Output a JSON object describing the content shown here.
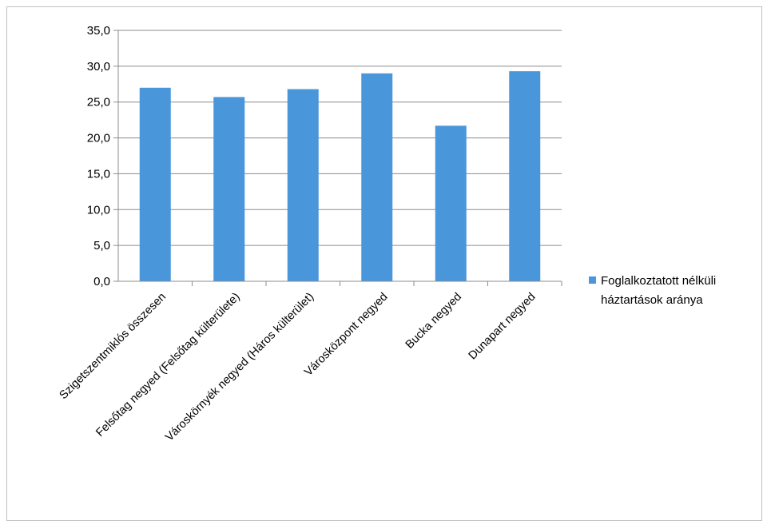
{
  "chart_data": {
    "type": "bar",
    "categories": [
      "Szigetszentmiklós összesen",
      "Felsőtag negyed (Felsőtag külterülete)",
      "Városkörnyék negyed (Háros külterület)",
      "Városközpont negyed",
      "Bucka negyed",
      "Dunapart negyed"
    ],
    "series": [
      {
        "name": "Foglalkoztatott nélküli háztartások aránya",
        "values": [
          27.0,
          25.7,
          26.8,
          29.0,
          21.7,
          29.3
        ],
        "color": "#4A96DB"
      }
    ],
    "ylim": [
      0,
      35
    ],
    "yticks": [
      "0,0",
      "5,0",
      "10,0",
      "15,0",
      "20,0",
      "25,0",
      "30,0",
      "35,0"
    ],
    "grid": true,
    "legend_position": "right",
    "legend_lines": [
      "Foglalkoztatott nélküli",
      "háztartások aránya"
    ],
    "title": "",
    "xlabel": "",
    "ylabel": ""
  }
}
